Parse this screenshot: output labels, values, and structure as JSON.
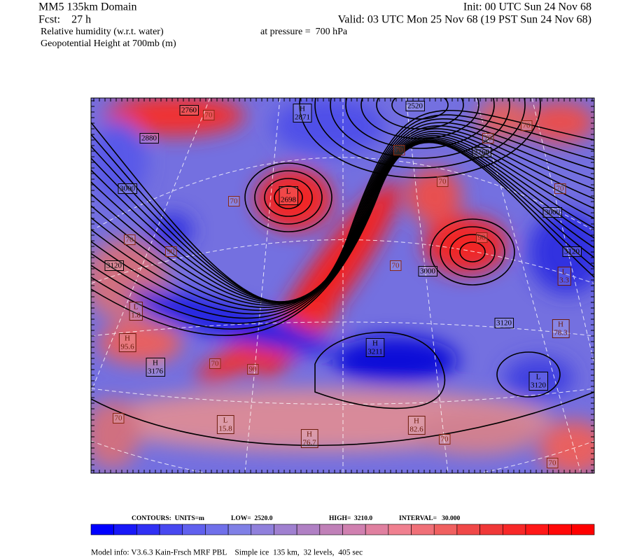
{
  "header": {
    "left": [
      "MM5 135km Domain",
      "Fcst:    27 h",
      "Relative humidity (w.r.t. water)",
      "Geopotential Height at 700mb (m)"
    ],
    "init": "Init: 00 UTC Sun 24 Nov 68",
    "valid": "Valid: 03 UTC Mon 25 Nov 68 (19 PST Sun 24 Nov 68)",
    "pressure": "at pressure =  700 hPa"
  },
  "map": {
    "height_labels": [
      2760,
      2880,
      3000,
      3120,
      2520,
      2760,
      3000,
      3120,
      3000,
      3120
    ],
    "height_extrema": [
      {
        "kind": "H",
        "value": 2871
      },
      {
        "kind": "L",
        "value": 2698
      },
      {
        "kind": "H",
        "value": 3211
      },
      {
        "kind": "H",
        "value": 3176
      },
      {
        "kind": "L",
        "value": 3120
      }
    ],
    "rh_labels": [
      70,
      70,
      70,
      70,
      70,
      70,
      70,
      70,
      70,
      70,
      70,
      70,
      70,
      90,
      90,
      90
    ],
    "rh_extrema": [
      {
        "kind": "L",
        "value": 1.8
      },
      {
        "kind": "H",
        "value": 95.6
      },
      {
        "kind": "L",
        "value": 15.8
      },
      {
        "kind": "H",
        "value": 76.7
      },
      {
        "kind": "H",
        "value": 82.6
      },
      {
        "kind": "H",
        "value": 78.3
      },
      {
        "kind": "L",
        "value": 3.3
      }
    ]
  },
  "contour_info": {
    "units": "CONTOURS:  UNITS=m",
    "low": "LOW=  2520.0",
    "high": "HIGH=  3210.0",
    "interval": "INTERVAL=   30.000"
  },
  "colorbar": {
    "colors": [
      "#0000ff",
      "#1818f8",
      "#3030f4",
      "#4848f0",
      "#6060ee",
      "#7070ea",
      "#8080e6",
      "#9080dc",
      "#a080d0",
      "#b080c4",
      "#c080b8",
      "#d080b0",
      "#e080a0",
      "#f08090",
      "#f07078",
      "#f06060",
      "#f04848",
      "#f03838",
      "#f82828",
      "#ff1818",
      "#ff0808",
      "#ff0000"
    ]
  },
  "footer": "Model info: V3.6.3 Kain-Frsch MRF PBL    Simple ice  135 km,  32 levels,  405 sec"
}
